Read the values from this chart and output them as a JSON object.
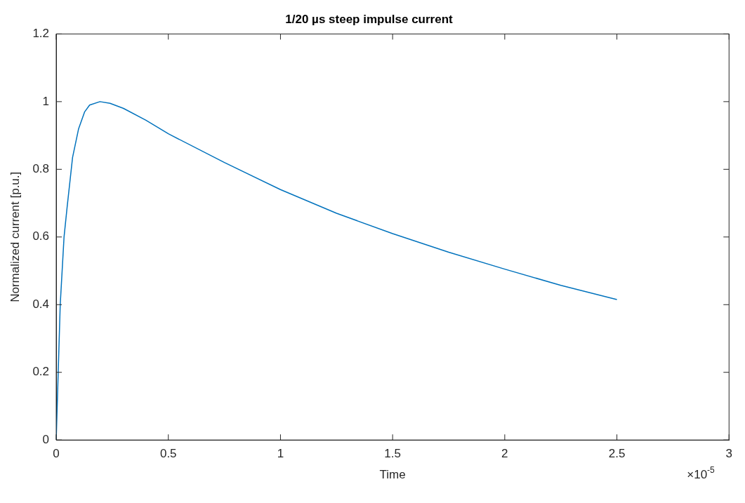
{
  "chart_data": {
    "type": "line",
    "title": "1/20 µs steep impulse current",
    "xlabel": "Time",
    "ylabel": "Normalized current [p.u.]",
    "annotations": [
      "×10$^{-5}$"
    ],
    "x": [
      0,
      0.009,
      0.018,
      0.035,
      0.049,
      0.073,
      0.1,
      0.127,
      0.149,
      0.195,
      0.24,
      0.3,
      0.4,
      0.5,
      0.75,
      1.0,
      1.25,
      1.5,
      1.75,
      2.0,
      2.25,
      2.5
    ],
    "series": [
      {
        "color": "#0072bd",
        "values": [
          0,
          0.2,
          0.4,
          0.6,
          0.69,
          0.835,
          0.92,
          0.97,
          0.99,
          1.0,
          0.995,
          0.98,
          0.945,
          0.905,
          0.82,
          0.74,
          0.67,
          0.61,
          0.555,
          0.505,
          0.457,
          0.415
        ]
      }
    ],
    "xlim": [
      0,
      3
    ],
    "xticks": [
      0,
      0.5,
      1,
      1.5,
      2,
      2.5,
      3
    ],
    "ylim": [
      0,
      1.2
    ],
    "yticks": [
      0,
      0.2,
      0.4,
      0.6,
      0.8,
      1,
      1.2
    ],
    "grid": false,
    "legend": false,
    "marker": "none",
    "line_style": "solid"
  }
}
